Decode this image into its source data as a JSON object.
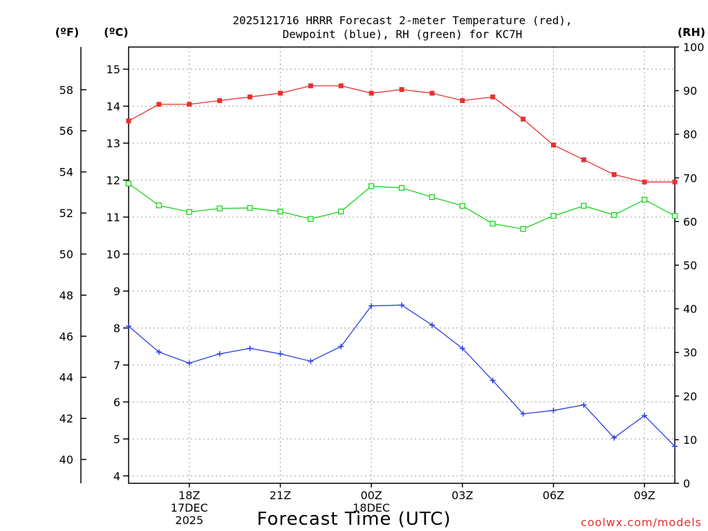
{
  "title_line1": "2025121716 HRRR Forecast 2-meter Temperature (red),",
  "title_line2": "Dewpoint (blue), RH (green) for KC7H",
  "unit_f": "(ºF)",
  "unit_c": "(ºC)",
  "unit_rh": "(RH)",
  "xlabel": "Forecast Time (UTC)",
  "credit": "coolwx.com/models",
  "colors": {
    "temperature": "#e8302e",
    "dewpoint": "#2a3fe0",
    "rh": "#19d31c",
    "credit": "#e0312e"
  },
  "chart_data": {
    "type": "line",
    "title": "2025121716 HRRR Forecast 2-meter Temperature (red), Dewpoint (blue), RH (green) for KC7H",
    "xlabel": "Forecast Time (UTC)",
    "x_hours_utc": [
      16,
      17,
      18,
      19,
      20,
      21,
      22,
      23,
      24,
      25,
      26,
      27,
      28,
      29,
      30,
      31,
      32,
      33,
      34
    ],
    "xlim": [
      16,
      34
    ],
    "x_ticks": [
      {
        "hour": 18,
        "lines": [
          "18Z",
          "17DEC",
          "2025"
        ]
      },
      {
        "hour": 21,
        "lines": [
          "21Z"
        ]
      },
      {
        "hour": 24,
        "lines": [
          "00Z",
          "18DEC"
        ]
      },
      {
        "hour": 27,
        "lines": [
          "03Z"
        ]
      },
      {
        "hour": 30,
        "lines": [
          "06Z"
        ]
      },
      {
        "hour": 33,
        "lines": [
          "09Z"
        ]
      }
    ],
    "y_left_c": {
      "label": "(ºC)",
      "lim": [
        3.8,
        15.6
      ],
      "ticks": [
        4,
        5,
        6,
        7,
        8,
        9,
        10,
        11,
        12,
        13,
        14,
        15
      ]
    },
    "y_left_f": {
      "label": "(ºF)",
      "ticks": [
        40,
        42,
        44,
        46,
        48,
        50,
        52,
        54,
        56,
        58
      ]
    },
    "y_right_rh": {
      "label": "(RH)",
      "lim": [
        0,
        100
      ],
      "ticks": [
        0,
        10,
        20,
        30,
        40,
        50,
        60,
        70,
        80,
        90,
        100
      ]
    },
    "series": [
      {
        "name": "Temperature",
        "axis": "C",
        "color": "#e8302e",
        "marker": "filled-square",
        "values": [
          13.6,
          14.05,
          14.05,
          14.15,
          14.25,
          14.35,
          14.55,
          14.55,
          14.35,
          14.45,
          14.35,
          14.15,
          14.25,
          13.65,
          12.95,
          12.55,
          12.15,
          11.95,
          11.95
        ]
      },
      {
        "name": "Dewpoint",
        "axis": "C",
        "color": "#2a3fe0",
        "marker": "plus",
        "values": [
          8.05,
          7.35,
          7.05,
          7.3,
          7.45,
          7.3,
          7.1,
          7.5,
          8.6,
          8.62,
          8.08,
          7.45,
          6.58,
          5.68,
          5.77,
          5.92,
          5.03,
          5.63,
          4.8
        ]
      },
      {
        "name": "RH",
        "axis": "RH",
        "color": "#19d31c",
        "marker": "open-square",
        "values": [
          68.7,
          63.7,
          62.2,
          63.0,
          63.1,
          62.3,
          60.6,
          62.3,
          68.1,
          67.7,
          65.6,
          63.6,
          59.5,
          58.3,
          61.3,
          63.6,
          61.5,
          65.0,
          61.3
        ]
      }
    ]
  }
}
